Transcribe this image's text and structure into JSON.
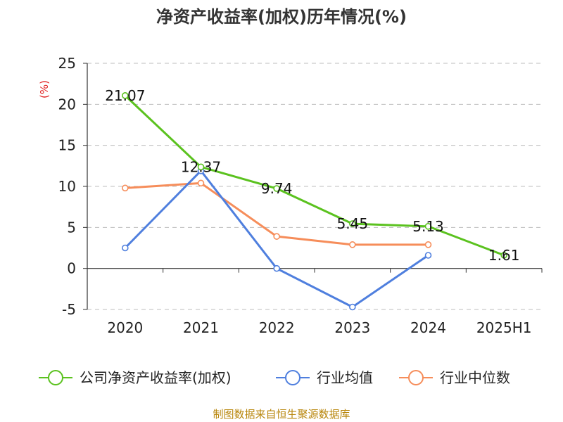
{
  "colors": {
    "company": "#5bc21f",
    "industry_avg": "#4f7fde",
    "industry_median": "#f68d5a",
    "unit": "#e02020",
    "source": "#b8860b",
    "grid": "#bdbdbd"
  },
  "chart_data": {
    "type": "line",
    "title": "净资产收益率(加权)历年情况(%)",
    "ylabel": "(%)",
    "categories": [
      "2020",
      "2021",
      "2022",
      "2023",
      "2024",
      "2025H1"
    ],
    "ylim": [
      -5,
      25
    ],
    "yticks": [
      "25",
      "20",
      "15",
      "10",
      "5",
      "0",
      "-5"
    ],
    "grid": "horizontal-dashed",
    "legend_position": "bottom",
    "series": [
      {
        "name": "公司净资产收益率(加权)",
        "color": "#5bc21f",
        "values": [
          21.07,
          12.37,
          9.74,
          5.45,
          5.13,
          1.61
        ],
        "labels": [
          "21.07",
          "12.37",
          "9.74",
          "5.45",
          "5.13",
          "1.61"
        ]
      },
      {
        "name": "行业均值",
        "color": "#4f7fde",
        "values": [
          2.5,
          11.9,
          0.0,
          -4.7,
          1.6,
          null
        ]
      },
      {
        "name": "行业中位数",
        "color": "#f68d5a",
        "values": [
          9.8,
          10.4,
          3.9,
          2.9,
          2.9,
          null
        ]
      }
    ],
    "source": "制图数据来自恒生聚源数据库"
  }
}
